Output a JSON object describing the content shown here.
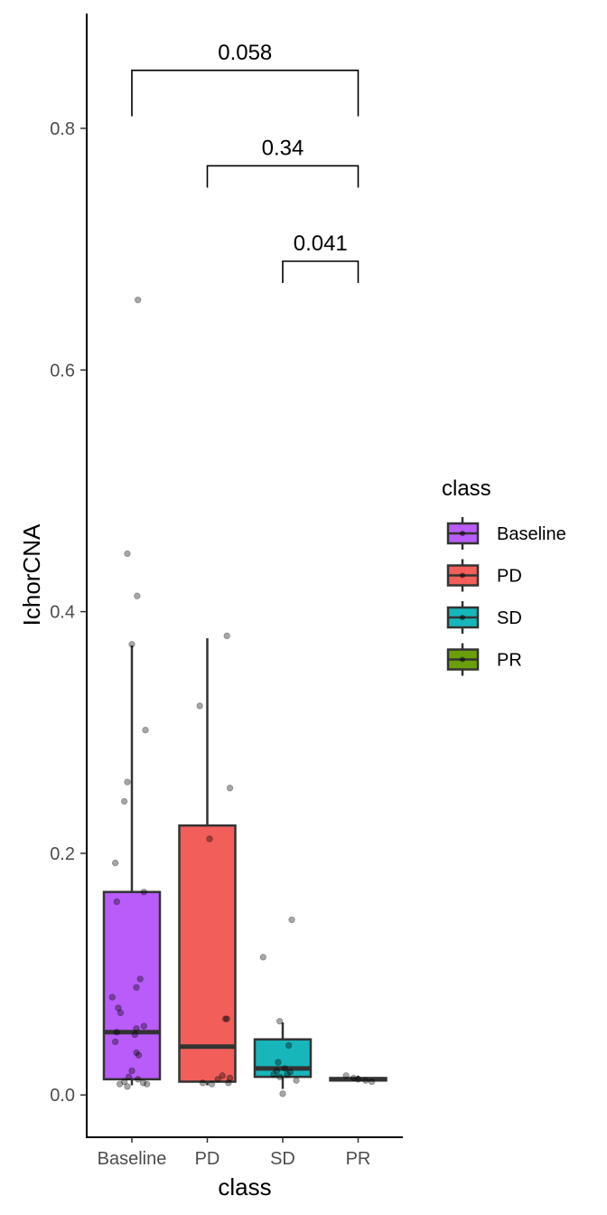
{
  "chart_data": {
    "type": "boxplot",
    "xlabel": "class",
    "ylabel": "IchorCNA",
    "ylim": [
      -0.035,
      0.895
    ],
    "yticks": [
      0.0,
      0.2,
      0.4,
      0.6,
      0.8
    ],
    "ytick_labels": [
      "0.0",
      "0.2",
      "0.4",
      "0.6",
      "0.8"
    ],
    "categories": [
      "Baseline",
      "PD",
      "SD",
      "PR"
    ],
    "colors": {
      "Baseline": "#B95CF9",
      "PD": "#F25E5A",
      "SD": "#17B6BB",
      "PR": "#6A9F0A"
    },
    "boxes": [
      {
        "category": "Baseline",
        "whisker_low": 0.008,
        "q1": 0.013,
        "median": 0.052,
        "q3": 0.168,
        "whisker_high": 0.372
      },
      {
        "category": "PD",
        "whisker_low": 0.008,
        "q1": 0.011,
        "median": 0.04,
        "q3": 0.223,
        "whisker_high": 0.378
      },
      {
        "category": "SD",
        "whisker_low": 0.005,
        "q1": 0.015,
        "median": 0.022,
        "q3": 0.046,
        "whisker_high": 0.06
      },
      {
        "category": "PR",
        "whisker_low": 0.012,
        "q1": 0.012,
        "median": 0.013,
        "q3": 0.014,
        "whisker_high": 0.016
      }
    ],
    "points": [
      {
        "category": "Baseline",
        "jitter": 0.08,
        "y": 0.658
      },
      {
        "category": "Baseline",
        "jitter": -0.06,
        "y": 0.448
      },
      {
        "category": "Baseline",
        "jitter": 0.07,
        "y": 0.413
      },
      {
        "category": "Baseline",
        "jitter": 0.0,
        "y": 0.373
      },
      {
        "category": "Baseline",
        "jitter": 0.18,
        "y": 0.302
      },
      {
        "category": "Baseline",
        "jitter": -0.06,
        "y": 0.259
      },
      {
        "category": "Baseline",
        "jitter": -0.1,
        "y": 0.243
      },
      {
        "category": "Baseline",
        "jitter": -0.22,
        "y": 0.192
      },
      {
        "category": "Baseline",
        "jitter": 0.16,
        "y": 0.168
      },
      {
        "category": "Baseline",
        "jitter": -0.2,
        "y": 0.16
      },
      {
        "category": "Baseline",
        "jitter": 0.11,
        "y": 0.096
      },
      {
        "category": "Baseline",
        "jitter": 0.06,
        "y": 0.089
      },
      {
        "category": "Baseline",
        "jitter": -0.26,
        "y": 0.081
      },
      {
        "category": "Baseline",
        "jitter": -0.18,
        "y": 0.072
      },
      {
        "category": "Baseline",
        "jitter": -0.15,
        "y": 0.068
      },
      {
        "category": "Baseline",
        "jitter": 0.16,
        "y": 0.057
      },
      {
        "category": "Baseline",
        "jitter": 0.06,
        "y": 0.055
      },
      {
        "category": "Baseline",
        "jitter": -0.2,
        "y": 0.052
      },
      {
        "category": "Baseline",
        "jitter": 0.04,
        "y": 0.05
      },
      {
        "category": "Baseline",
        "jitter": -0.22,
        "y": 0.044
      },
      {
        "category": "Baseline",
        "jitter": 0.06,
        "y": 0.035
      },
      {
        "category": "Baseline",
        "jitter": 0.09,
        "y": 0.033
      },
      {
        "category": "Baseline",
        "jitter": 0.0,
        "y": 0.02
      },
      {
        "category": "Baseline",
        "jitter": -0.04,
        "y": 0.015
      },
      {
        "category": "Baseline",
        "jitter": 0.08,
        "y": 0.013
      },
      {
        "category": "Baseline",
        "jitter": -0.1,
        "y": 0.011
      },
      {
        "category": "Baseline",
        "jitter": 0.15,
        "y": 0.01
      },
      {
        "category": "Baseline",
        "jitter": 0.2,
        "y": 0.009
      },
      {
        "category": "Baseline",
        "jitter": -0.16,
        "y": 0.009
      },
      {
        "category": "Baseline",
        "jitter": -0.06,
        "y": 0.007
      },
      {
        "category": "PD",
        "jitter": 0.26,
        "y": 0.38
      },
      {
        "category": "PD",
        "jitter": -0.1,
        "y": 0.322
      },
      {
        "category": "PD",
        "jitter": 0.3,
        "y": 0.254
      },
      {
        "category": "PD",
        "jitter": 0.03,
        "y": 0.212
      },
      {
        "category": "PD",
        "jitter": 0.24,
        "y": 0.063
      },
      {
        "category": "PD",
        "jitter": 0.26,
        "y": 0.063
      },
      {
        "category": "PD",
        "jitter": 0.2,
        "y": 0.016
      },
      {
        "category": "PD",
        "jitter": 0.14,
        "y": 0.013
      },
      {
        "category": "PD",
        "jitter": 0.3,
        "y": 0.014
      },
      {
        "category": "PD",
        "jitter": -0.06,
        "y": 0.01
      },
      {
        "category": "PD",
        "jitter": 0.06,
        "y": 0.009
      },
      {
        "category": "PD",
        "jitter": 0.28,
        "y": 0.01
      },
      {
        "category": "SD",
        "jitter": 0.12,
        "y": 0.145
      },
      {
        "category": "SD",
        "jitter": -0.26,
        "y": 0.114
      },
      {
        "category": "SD",
        "jitter": -0.04,
        "y": 0.061
      },
      {
        "category": "SD",
        "jitter": 0.08,
        "y": 0.041
      },
      {
        "category": "SD",
        "jitter": -0.06,
        "y": 0.027
      },
      {
        "category": "SD",
        "jitter": 0.03,
        "y": 0.022
      },
      {
        "category": "SD",
        "jitter": -0.08,
        "y": 0.02
      },
      {
        "category": "SD",
        "jitter": 0.1,
        "y": 0.019
      },
      {
        "category": "SD",
        "jitter": -0.12,
        "y": 0.017
      },
      {
        "category": "SD",
        "jitter": 0.06,
        "y": 0.017
      },
      {
        "category": "SD",
        "jitter": -0.04,
        "y": 0.015
      },
      {
        "category": "SD",
        "jitter": 0.18,
        "y": 0.012
      },
      {
        "category": "SD",
        "jitter": 0.0,
        "y": 0.001
      },
      {
        "category": "PR",
        "jitter": -0.16,
        "y": 0.016
      },
      {
        "category": "PR",
        "jitter": -0.06,
        "y": 0.014
      },
      {
        "category": "PR",
        "jitter": 0.0,
        "y": 0.013
      },
      {
        "category": "PR",
        "jitter": 0.1,
        "y": 0.012
      },
      {
        "category": "PR",
        "jitter": 0.18,
        "y": 0.011
      }
    ],
    "comparisons": [
      {
        "from": "Baseline",
        "to": "PR",
        "p_label": "0.058",
        "bracket_y": 0.848,
        "tip_y": 0.81
      },
      {
        "from": "PD",
        "to": "PR",
        "p_label": "0.34",
        "bracket_y": 0.769,
        "tip_y": 0.751
      },
      {
        "from": "SD",
        "to": "PR",
        "p_label": "0.041",
        "bracket_y": 0.69,
        "tip_y": 0.672
      }
    ],
    "legend": {
      "title": "class",
      "placement": "right",
      "entries": [
        "Baseline",
        "PD",
        "SD",
        "PR"
      ]
    },
    "grid": false
  }
}
